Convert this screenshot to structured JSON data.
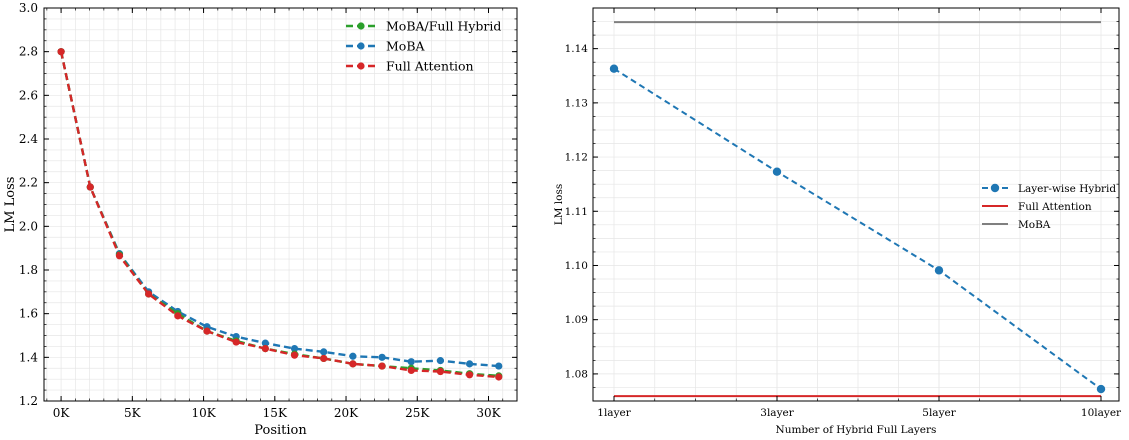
{
  "chart_data": [
    {
      "type": "line",
      "xlabel": "Position",
      "ylabel": "LM Loss",
      "xlim": [
        -1200,
        32000
      ],
      "ylim": [
        1.2,
        3.0
      ],
      "x_ticks": [
        0,
        5000,
        10000,
        15000,
        20000,
        25000,
        30000
      ],
      "x_tick_labels": [
        "0K",
        "5K",
        "10K",
        "15K",
        "20K",
        "25K",
        "30K"
      ],
      "y_ticks": [
        1.2,
        1.4,
        1.6,
        1.8,
        2.0,
        2.2,
        2.4,
        2.6,
        2.8,
        3.0
      ],
      "y_tick_labels": [
        "1.2",
        "1.4",
        "1.6",
        "1.8",
        "2.0",
        "2.2",
        "2.4",
        "2.6",
        "2.8",
        "3.0"
      ],
      "grid": true,
      "legend_position": "top-right",
      "x": [
        0,
        2048,
        4096,
        6144,
        8192,
        10240,
        12288,
        14336,
        16384,
        18432,
        20480,
        22528,
        24576,
        26624,
        28672,
        30720
      ],
      "series": [
        {
          "name": "MoBA/Full Hybrid",
          "color": "#2ca02c",
          "values": [
            2.8,
            2.18,
            1.87,
            1.69,
            1.6,
            1.52,
            1.475,
            1.44,
            1.415,
            1.395,
            1.37,
            1.36,
            1.35,
            1.34,
            1.325,
            1.315
          ]
        },
        {
          "name": "MoBA",
          "color": "#1f77b4",
          "values": [
            2.8,
            2.18,
            1.875,
            1.7,
            1.61,
            1.54,
            1.495,
            1.465,
            1.44,
            1.425,
            1.405,
            1.4,
            1.38,
            1.385,
            1.37,
            1.36
          ]
        },
        {
          "name": "Full Attention",
          "color": "#d62728",
          "values": [
            2.8,
            2.18,
            1.865,
            1.69,
            1.59,
            1.52,
            1.47,
            1.44,
            1.41,
            1.395,
            1.37,
            1.36,
            1.34,
            1.335,
            1.32,
            1.31
          ]
        }
      ]
    },
    {
      "type": "line",
      "xlabel": "Number of Hybrid Full Layers",
      "ylabel": "LM loss",
      "categories": [
        "1layer",
        "3layer",
        "5layer",
        "10layer"
      ],
      "ylim": [
        1.075,
        1.1475
      ],
      "y_ticks": [
        1.08,
        1.09,
        1.1,
        1.11,
        1.12,
        1.13,
        1.14
      ],
      "y_tick_labels": [
        "1.08",
        "1.09",
        "1.10",
        "1.11",
        "1.12",
        "1.13",
        "1.14"
      ],
      "grid": true,
      "legend_position": "center-right",
      "series": [
        {
          "name": "Layer-wise Hybrid",
          "color": "#1f77b4",
          "style": "dashed-marker",
          "values": [
            1.1363,
            1.1173,
            1.0991,
            1.0772
          ]
        },
        {
          "name": "Full Attention",
          "color": "#d62728",
          "style": "solid",
          "values": [
            1.0759,
            1.0759,
            1.0759,
            1.0759
          ]
        },
        {
          "name": "MoBA",
          "color": "#7f7f7f",
          "style": "solid",
          "values": [
            1.1449,
            1.1449,
            1.1449,
            1.1449
          ]
        }
      ]
    }
  ]
}
